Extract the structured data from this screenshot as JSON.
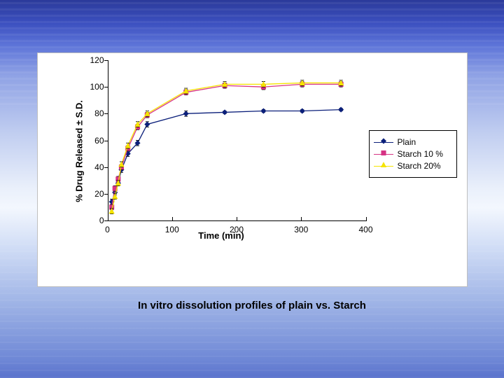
{
  "caption": "In vitro dissolution profiles of plain vs. Starch",
  "chart": {
    "type": "line",
    "background_color": "#ffffff",
    "border_color": "#bfbfbf",
    "font_family": "Arial",
    "title_fontsize": 15,
    "label_fontsize": 13,
    "tick_fontsize": 12,
    "xlabel": "Time (min)",
    "ylabel": "% Drug Released ± S.D.",
    "xlim": [
      0,
      400
    ],
    "ylim": [
      0,
      120
    ],
    "xticks": [
      0,
      100,
      200,
      300,
      400
    ],
    "yticks": [
      0,
      20,
      40,
      60,
      80,
      100,
      120
    ],
    "axis_color": "#000000",
    "line_width": 1.3,
    "marker_size": 7,
    "error_bar_color": "#000000",
    "error_cap_width": 5,
    "legend": {
      "border_color": "#000000",
      "position": "right-middle"
    },
    "series": [
      {
        "name": "Plain",
        "color": "#0b1f7a",
        "marker": "diamond",
        "marker_fill": "#0b1f7a",
        "x": [
          5,
          10,
          15,
          20,
          30,
          45,
          60,
          120,
          180,
          240,
          300,
          360
        ],
        "y": [
          14,
          21,
          28,
          38,
          50,
          58,
          72,
          80,
          81,
          82,
          82,
          83
        ],
        "err": [
          2,
          2,
          2,
          2,
          2,
          2,
          2,
          2,
          1,
          1,
          1,
          1
        ]
      },
      {
        "name": "Starch 10 %",
        "color": "#d63384",
        "marker": "square",
        "marker_fill": "#d63384",
        "x": [
          5,
          10,
          15,
          20,
          30,
          45,
          60,
          120,
          180,
          240,
          300,
          360
        ],
        "y": [
          10,
          24,
          31,
          40,
          54,
          70,
          79,
          96,
          101,
          100,
          102,
          102
        ],
        "err": [
          2,
          2,
          2,
          2,
          2,
          2,
          2,
          2,
          2,
          2,
          2,
          2
        ]
      },
      {
        "name": "Starch 20%",
        "color": "#f5e400",
        "marker": "triangle",
        "marker_fill": "#f5e400",
        "x": [
          5,
          10,
          15,
          20,
          30,
          45,
          60,
          120,
          180,
          240,
          300,
          360
        ],
        "y": [
          7,
          18,
          28,
          42,
          56,
          72,
          80,
          97,
          102,
          102,
          103,
          103
        ],
        "err": [
          2,
          2,
          2,
          2,
          2,
          2,
          2,
          2,
          2,
          2,
          2,
          2
        ]
      }
    ]
  }
}
